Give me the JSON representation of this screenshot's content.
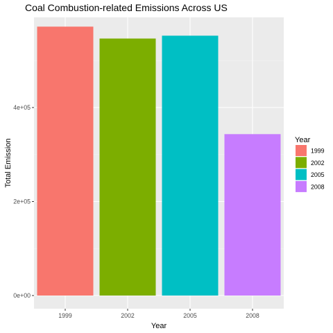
{
  "chart_data": {
    "type": "bar",
    "title": "Coal Combustion-related Emissions Across US",
    "xlabel": "Year",
    "ylabel": "Total Emission",
    "categories": [
      "1999",
      "2002",
      "2005",
      "2008"
    ],
    "values": [
      572126,
      546789,
      552881,
      343432
    ],
    "colors": [
      "#F8766D",
      "#7CAE00",
      "#00BFC4",
      "#C77CFF"
    ],
    "ylim": [
      0,
      600000
    ],
    "yticks": [
      0,
      200000,
      400000
    ],
    "ytick_labels": [
      "0e+00",
      "2e+05",
      "4e+05"
    ],
    "grid": true,
    "panel_background": "#EBEBEB",
    "legend": {
      "title": "Year",
      "position": "right",
      "entries": [
        "1999",
        "2002",
        "2005",
        "2008"
      ]
    }
  }
}
